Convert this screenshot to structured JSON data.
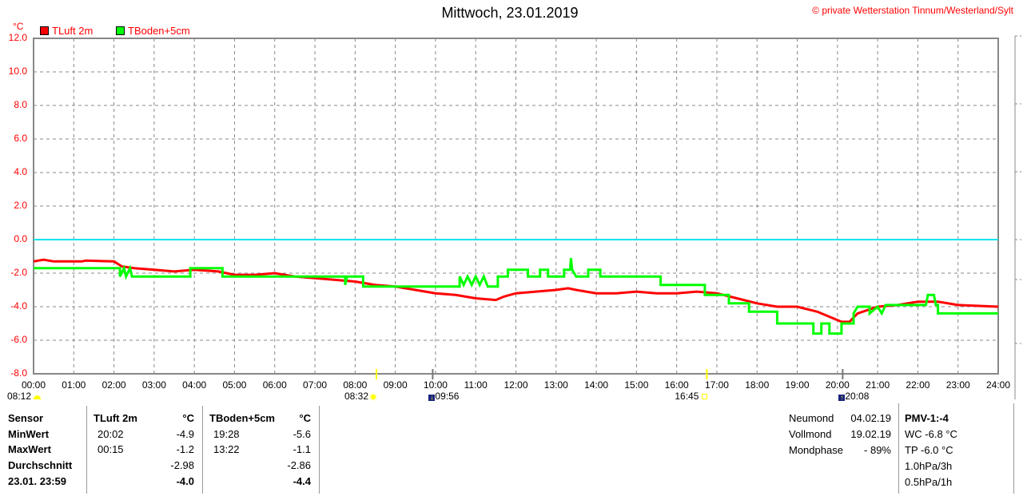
{
  "header": {
    "title": "Mittwoch, 23.01.2019",
    "copyright": "© private Wetterstation Tinnum/Westerland/Sylt",
    "unit": "°C"
  },
  "chart_data": {
    "type": "line",
    "title": "Mittwoch, 23.01.2019",
    "ylabel": "°C",
    "ylim": [
      -8,
      12
    ],
    "xlim": [
      0,
      24
    ],
    "grid": true,
    "legend": "top-left",
    "y_ticks": [
      "12.0",
      "10.0",
      "8.0",
      "6.0",
      "4.0",
      "2.0",
      "0.0",
      "-2.0",
      "-4.0",
      "-6.0",
      "-8.0"
    ],
    "x_ticks": [
      "00:00",
      "01:00",
      "02:00",
      "03:00",
      "04:00",
      "05:00",
      "06:00",
      "07:00",
      "08:00",
      "09:00",
      "10:00",
      "11:00",
      "12:00",
      "13:00",
      "14:00",
      "15:00",
      "16:00",
      "17:00",
      "18:00",
      "19:00",
      "20:00",
      "21:00",
      "22:00",
      "23:00",
      "24:00"
    ],
    "reference_line": {
      "value": 0,
      "color": "#00e5ee"
    },
    "series": [
      {
        "name": "TLuft 2m",
        "color": "#ff0000",
        "points": [
          [
            0,
            -1.3
          ],
          [
            0.25,
            -1.2
          ],
          [
            0.5,
            -1.3
          ],
          [
            1.2,
            -1.3
          ],
          [
            1.3,
            -1.25
          ],
          [
            2.0,
            -1.3
          ],
          [
            2.2,
            -1.6
          ],
          [
            2.5,
            -1.7
          ],
          [
            3.0,
            -1.8
          ],
          [
            3.5,
            -1.9
          ],
          [
            4.0,
            -1.8
          ],
          [
            4.6,
            -1.9
          ],
          [
            5.0,
            -2.1
          ],
          [
            5.5,
            -2.1
          ],
          [
            6.0,
            -2.0
          ],
          [
            6.5,
            -2.2
          ],
          [
            7.0,
            -2.3
          ],
          [
            7.5,
            -2.4
          ],
          [
            8.0,
            -2.5
          ],
          [
            8.5,
            -2.7
          ],
          [
            9.0,
            -2.8
          ],
          [
            9.5,
            -3.0
          ],
          [
            10.0,
            -3.2
          ],
          [
            10.5,
            -3.3
          ],
          [
            11.0,
            -3.5
          ],
          [
            11.5,
            -3.6
          ],
          [
            11.7,
            -3.4
          ],
          [
            12.0,
            -3.2
          ],
          [
            12.5,
            -3.1
          ],
          [
            13.0,
            -3.0
          ],
          [
            13.3,
            -2.9
          ],
          [
            13.5,
            -3.0
          ],
          [
            14.0,
            -3.2
          ],
          [
            14.5,
            -3.2
          ],
          [
            15.0,
            -3.1
          ],
          [
            15.5,
            -3.2
          ],
          [
            16.0,
            -3.2
          ],
          [
            16.5,
            -3.1
          ],
          [
            17.0,
            -3.2
          ],
          [
            17.5,
            -3.5
          ],
          [
            18.0,
            -3.8
          ],
          [
            18.5,
            -4.0
          ],
          [
            19.0,
            -4.0
          ],
          [
            19.5,
            -4.3
          ],
          [
            20.0,
            -4.8
          ],
          [
            20.1,
            -4.9
          ],
          [
            20.3,
            -4.9
          ],
          [
            20.5,
            -4.4
          ],
          [
            21.0,
            -4.0
          ],
          [
            21.5,
            -3.9
          ],
          [
            22.0,
            -3.7
          ],
          [
            22.5,
            -3.7
          ],
          [
            23.0,
            -3.9
          ],
          [
            24.0,
            -4.0
          ]
        ]
      },
      {
        "name": "TBoden+5cm",
        "color": "#00ff00",
        "points": [
          [
            0,
            -1.7
          ],
          [
            2.15,
            -1.7
          ],
          [
            2.15,
            -2.2
          ],
          [
            2.25,
            -1.7
          ],
          [
            2.3,
            -2.2
          ],
          [
            2.4,
            -1.7
          ],
          [
            2.45,
            -2.2
          ],
          [
            3.9,
            -2.2
          ],
          [
            3.9,
            -1.7
          ],
          [
            4.7,
            -1.7
          ],
          [
            4.7,
            -2.2
          ],
          [
            7.75,
            -2.2
          ],
          [
            7.75,
            -2.7
          ],
          [
            7.8,
            -2.2
          ],
          [
            8.2,
            -2.2
          ],
          [
            8.2,
            -2.8
          ],
          [
            10.6,
            -2.8
          ],
          [
            10.6,
            -2.2
          ],
          [
            10.7,
            -2.7
          ],
          [
            10.8,
            -2.2
          ],
          [
            10.9,
            -2.7
          ],
          [
            11.0,
            -2.2
          ],
          [
            11.1,
            -2.7
          ],
          [
            11.2,
            -2.2
          ],
          [
            11.3,
            -2.8
          ],
          [
            11.55,
            -2.8
          ],
          [
            11.55,
            -2.2
          ],
          [
            11.8,
            -2.2
          ],
          [
            11.8,
            -1.8
          ],
          [
            12.3,
            -1.8
          ],
          [
            12.3,
            -2.2
          ],
          [
            12.6,
            -2.2
          ],
          [
            12.6,
            -1.8
          ],
          [
            12.8,
            -1.8
          ],
          [
            12.8,
            -2.2
          ],
          [
            13.2,
            -2.2
          ],
          [
            13.2,
            -1.8
          ],
          [
            13.35,
            -1.8
          ],
          [
            13.37,
            -1.1
          ],
          [
            13.4,
            -1.8
          ],
          [
            13.5,
            -2.2
          ],
          [
            13.8,
            -2.2
          ],
          [
            13.8,
            -1.8
          ],
          [
            14.1,
            -1.8
          ],
          [
            14.1,
            -2.2
          ],
          [
            15.6,
            -2.2
          ],
          [
            15.6,
            -2.7
          ],
          [
            16.7,
            -2.7
          ],
          [
            16.7,
            -3.3
          ],
          [
            17.3,
            -3.3
          ],
          [
            17.3,
            -3.8
          ],
          [
            17.8,
            -3.8
          ],
          [
            17.8,
            -4.3
          ],
          [
            18.5,
            -4.3
          ],
          [
            18.5,
            -5.0
          ],
          [
            19.4,
            -5.0
          ],
          [
            19.4,
            -5.6
          ],
          [
            19.6,
            -5.6
          ],
          [
            19.6,
            -5.0
          ],
          [
            19.8,
            -5.0
          ],
          [
            19.8,
            -5.6
          ],
          [
            20.1,
            -5.6
          ],
          [
            20.1,
            -5.0
          ],
          [
            20.4,
            -5.0
          ],
          [
            20.4,
            -4.4
          ],
          [
            20.5,
            -4.0
          ],
          [
            20.8,
            -4.0
          ],
          [
            20.8,
            -4.4
          ],
          [
            21.0,
            -4.0
          ],
          [
            21.1,
            -4.4
          ],
          [
            21.2,
            -3.9
          ],
          [
            22.2,
            -3.9
          ],
          [
            22.25,
            -3.3
          ],
          [
            22.4,
            -3.3
          ],
          [
            22.45,
            -3.9
          ],
          [
            22.5,
            -3.9
          ],
          [
            22.5,
            -4.4
          ],
          [
            24,
            -4.4
          ]
        ]
      }
    ]
  },
  "astro": [
    {
      "time": "08:12",
      "event": "sunrise",
      "icon": "sunrise-icon",
      "hour": 8.2
    },
    {
      "time": "08:32",
      "event": "sun",
      "icon": "sun-icon",
      "hour": 8.53
    },
    {
      "time": "09:56",
      "event": "moonset",
      "icon": "moonset-icon",
      "hour": 9.93
    },
    {
      "time": "16:45",
      "event": "sunset",
      "icon": "sunset-icon",
      "hour": 16.75
    },
    {
      "time": "20:08",
      "event": "moonrise",
      "icon": "moonrise-icon",
      "hour": 20.13
    }
  ],
  "table": {
    "row_labels": [
      "Sensor",
      "MinWert",
      "MaxWert",
      "Durchschnitt",
      "23.01. 23:59"
    ],
    "sensors": [
      {
        "name": "TLuft 2m",
        "unit": "°C",
        "min_time": "20:02",
        "min": "-4.9",
        "max_time": "00:15",
        "max": "-1.2",
        "avg": "-2.98",
        "current": "-4.0"
      },
      {
        "name": "TBoden+5cm",
        "unit": "°C",
        "min_time": "19:28",
        "min": "-5.6",
        "max_time": "13:22",
        "max": "-1.1",
        "avg": "-2.86",
        "current": "-4.4"
      }
    ]
  },
  "moon": [
    {
      "label": "Neumond",
      "value": "04.02.19"
    },
    {
      "label": "Vollmond",
      "value": "19.02.19"
    },
    {
      "label": "Mondphase",
      "value": "- 89%"
    }
  ],
  "extra": [
    "PMV-1:-4",
    "WC -6.8 °C",
    "TP -6.0 °C",
    "1.0hPa/3h",
    "0.5hPa/1h"
  ]
}
